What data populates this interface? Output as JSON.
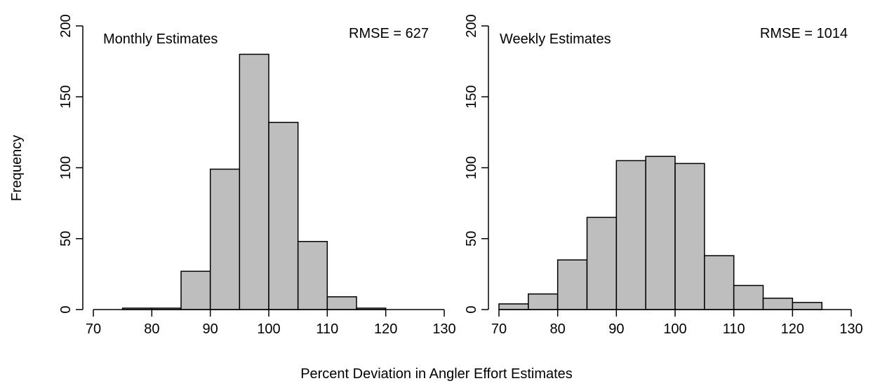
{
  "chart_data": [
    {
      "type": "histogram",
      "title": "Monthly Estimates",
      "annotation": "RMSE = 627",
      "bins": [
        70,
        75,
        80,
        85,
        90,
        95,
        100,
        105,
        110,
        115,
        120,
        125,
        130
      ],
      "values": [
        0,
        1,
        1,
        27,
        99,
        180,
        132,
        48,
        9,
        1,
        0,
        0
      ],
      "color": "#bebebe",
      "xlim": [
        70,
        130
      ],
      "xticks": [
        70,
        80,
        90,
        100,
        110,
        120,
        130
      ],
      "ylim": [
        0,
        200
      ],
      "yticks": [
        0,
        50,
        100,
        150,
        200
      ]
    },
    {
      "type": "histogram",
      "title": "Weekly Estimates",
      "annotation": "RMSE = 1014",
      "bins": [
        70,
        75,
        80,
        85,
        90,
        95,
        100,
        105,
        110,
        115,
        120,
        125
      ],
      "values": [
        4,
        11,
        35,
        65,
        105,
        108,
        103,
        38,
        17,
        8,
        5
      ],
      "color": "#bebebe",
      "xlim": [
        70,
        130
      ],
      "xticks": [
        70,
        80,
        90,
        100,
        110,
        120,
        130
      ],
      "ylim": [
        0,
        200
      ],
      "yticks": [
        0,
        50,
        100,
        150,
        200
      ]
    }
  ],
  "xlabel": "Percent Deviation in Angler Effort Estimates",
  "ylabel": "Frequency"
}
